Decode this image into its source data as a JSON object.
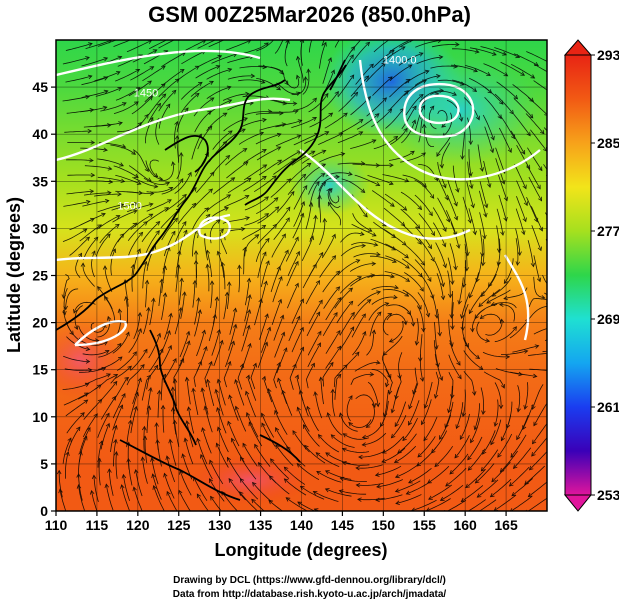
{
  "chart_data": {
    "type": "heatmap",
    "title": "GSM 00Z25Mar2026 (850.0hPa)",
    "xlabel": "Longitude (degrees)",
    "ylabel": "Latitude  (degrees)",
    "xlim": [
      110,
      170
    ],
    "ylim": [
      0,
      50
    ],
    "xticks": [
      110,
      115,
      120,
      125,
      130,
      135,
      140,
      145,
      150,
      155,
      160,
      165
    ],
    "yticks": [
      0,
      5,
      10,
      15,
      20,
      25,
      30,
      35,
      40,
      45
    ],
    "grid": true,
    "overlays": [
      "streamlines",
      "geopotential height contours",
      "coastlines"
    ],
    "contour_labels": [
      {
        "text": "1400.0",
        "lon": 152,
        "lat": 47.5
      },
      {
        "text": "1450",
        "lon": 121,
        "lat": 44
      },
      {
        "text": "1500",
        "lon": 119,
        "lat": 32
      }
    ],
    "colorbar": {
      "label_values": [
        293,
        285,
        277,
        269,
        261,
        253
      ],
      "min": 253,
      "max": 293,
      "colors": [
        "#e0159c",
        "#3a00b8",
        "#1a3df0",
        "#14a6f0",
        "#1fe0d2",
        "#2ed64a",
        "#a6e01e",
        "#f2e41a",
        "#f7a21a",
        "#f25a14",
        "#e82414"
      ]
    },
    "temperature_field": {
      "description_rows": "temperature by latitude band",
      "lat": [
        0,
        5,
        10,
        15,
        20,
        25,
        30,
        35,
        40,
        45,
        50
      ],
      "value": [
        289,
        289,
        288.5,
        288,
        287,
        284,
        279.5,
        277,
        275.5,
        274,
        273
      ]
    }
  },
  "credits": {
    "line1": "Drawing by DCL (https://www.gfd-dennou.org/library/dcl/)",
    "line2": "Data from http://database.rish.kyoto-u.ac.jp/arch/jmadata/"
  }
}
